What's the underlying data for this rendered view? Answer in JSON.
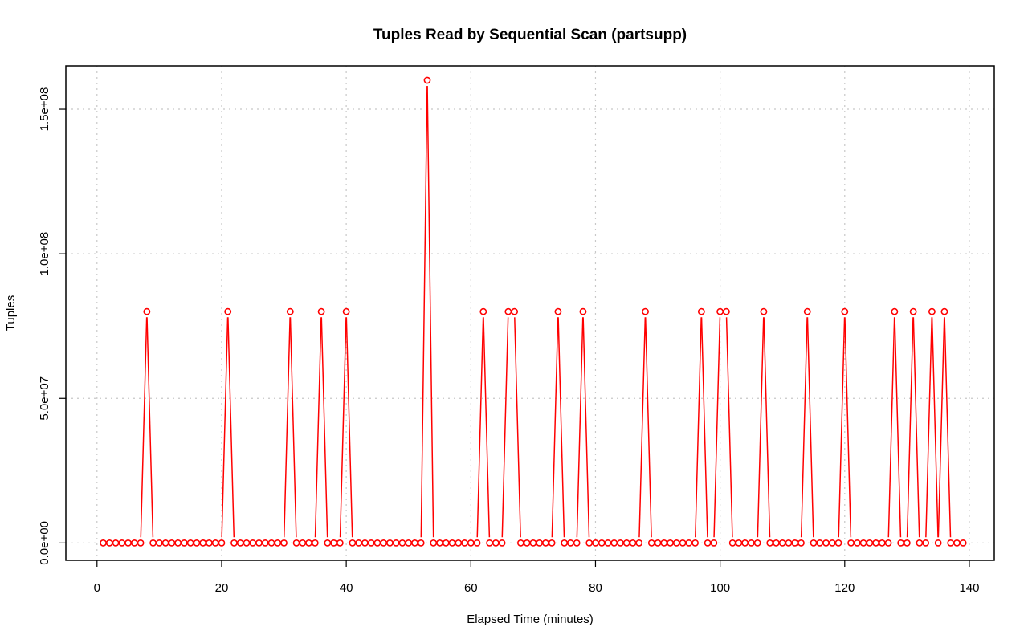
{
  "chart_data": {
    "type": "line",
    "title": "Tuples Read by Sequential Scan (partsupp)",
    "xlabel": "Elapsed Time (minutes)",
    "ylabel": "Tuples",
    "xlim": [
      -5,
      144
    ],
    "ylim": [
      -6000000,
      165000000
    ],
    "xticks": [
      0,
      20,
      40,
      60,
      80,
      100,
      120,
      140
    ],
    "xtick_labels": [
      "0",
      "20",
      "40",
      "60",
      "80",
      "100",
      "120",
      "140"
    ],
    "yticks": [
      0,
      50000000,
      100000000,
      150000000
    ],
    "ytick_labels": [
      "0.0e+00",
      "5.0e+07",
      "1.0e+08",
      "1.5e+08"
    ],
    "grid": true,
    "legend": "none",
    "series": [
      {
        "color": "#ff0000",
        "marker": "open-circle",
        "x": [
          1,
          2,
          3,
          4,
          5,
          6,
          7,
          8,
          9,
          10,
          11,
          12,
          13,
          14,
          15,
          16,
          17,
          18,
          19,
          20,
          21,
          22,
          23,
          24,
          25,
          26,
          27,
          28,
          29,
          30,
          31,
          32,
          33,
          34,
          35,
          36,
          37,
          38,
          39,
          40,
          41,
          42,
          43,
          44,
          45,
          46,
          47,
          48,
          49,
          50,
          51,
          52,
          53,
          54,
          55,
          56,
          57,
          58,
          59,
          60,
          61,
          62,
          63,
          64,
          65,
          66,
          67,
          68,
          69,
          70,
          71,
          72,
          73,
          74,
          75,
          76,
          77,
          78,
          79,
          80,
          81,
          82,
          83,
          84,
          85,
          86,
          87,
          88,
          89,
          90,
          91,
          92,
          93,
          94,
          95,
          96,
          97,
          98,
          99,
          100,
          101,
          102,
          103,
          104,
          105,
          106,
          107,
          108,
          109,
          110,
          111,
          112,
          113,
          114,
          115,
          116,
          117,
          118,
          119,
          120,
          121,
          122,
          123,
          124,
          125,
          126,
          127,
          128,
          129,
          130,
          131,
          132,
          133,
          134,
          135,
          136,
          137,
          138,
          139
        ],
        "y": [
          0,
          0,
          0,
          0,
          0,
          0,
          0,
          80000000,
          0,
          0,
          0,
          0,
          0,
          0,
          0,
          0,
          0,
          0,
          0,
          0,
          80000000,
          0,
          0,
          0,
          0,
          0,
          0,
          0,
          0,
          0,
          80000000,
          0,
          0,
          0,
          0,
          80000000,
          0,
          0,
          0,
          80000000,
          0,
          0,
          0,
          0,
          0,
          0,
          0,
          0,
          0,
          0,
          0,
          0,
          160000000,
          0,
          0,
          0,
          0,
          0,
          0,
          0,
          0,
          80000000,
          0,
          0,
          0,
          80000000,
          80000000,
          0,
          0,
          0,
          0,
          0,
          0,
          80000000,
          0,
          0,
          0,
          80000000,
          0,
          0,
          0,
          0,
          0,
          0,
          0,
          0,
          0,
          80000000,
          0,
          0,
          0,
          0,
          0,
          0,
          0,
          0,
          80000000,
          0,
          0,
          80000000,
          80000000,
          0,
          0,
          0,
          0,
          0,
          80000000,
          0,
          0,
          0,
          0,
          0,
          0,
          80000000,
          0,
          0,
          0,
          0,
          0,
          80000000,
          0,
          0,
          0,
          0,
          0,
          0,
          0,
          80000000,
          0,
          0,
          80000000,
          0,
          0,
          80000000,
          0,
          80000000,
          0,
          0,
          0
        ]
      }
    ]
  }
}
